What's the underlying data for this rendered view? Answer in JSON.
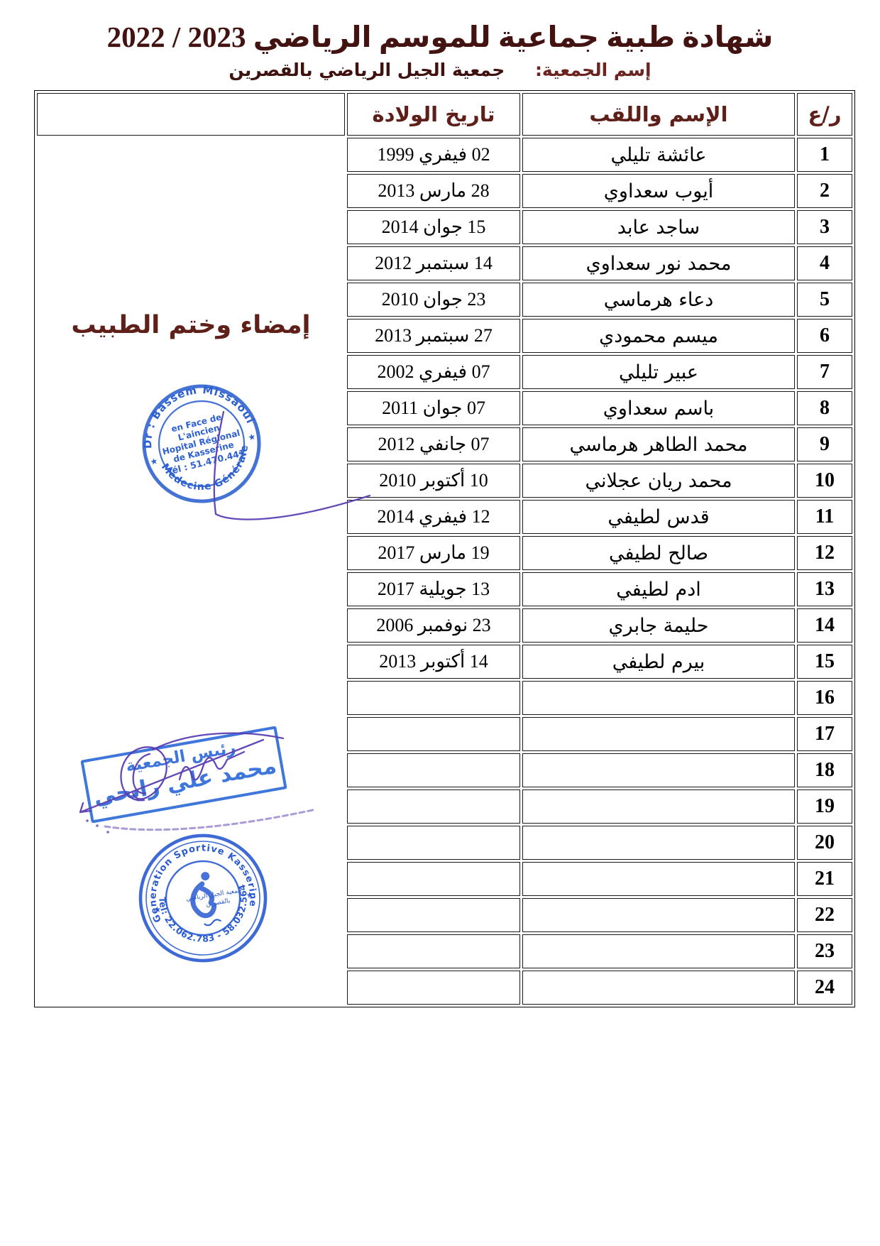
{
  "page": {
    "title": "شهادة طبية جماعية للموسم الرياضي 2023 / 2022",
    "subtitle_label": "إسم الجمعية:",
    "subtitle_value": "جمعية الجيل الرياضي بالقصرين"
  },
  "table": {
    "headers": {
      "index": "ر/ع",
      "name": "الإسم واللقب",
      "dob": "تاريخ الولادة"
    },
    "signature_header": "إمضاء وختم الطبيب",
    "rows": [
      {
        "n": "1",
        "name": "عائشة تليلي",
        "dob": "02 فيفري 1999"
      },
      {
        "n": "2",
        "name": "أيوب سعداوي",
        "dob": "28 مارس 2013"
      },
      {
        "n": "3",
        "name": "ساجد عابد",
        "dob": "15 جوان 2014"
      },
      {
        "n": "4",
        "name": "محمد نور سعداوي",
        "dob": "14 سبتمبر 2012"
      },
      {
        "n": "5",
        "name": "دعاء هرماسي",
        "dob": "23 جوان 2010"
      },
      {
        "n": "6",
        "name": "ميسم محمودي",
        "dob": "27 سبتمبر 2013"
      },
      {
        "n": "7",
        "name": "عبير تليلي",
        "dob": "07 فيفري 2002"
      },
      {
        "n": "8",
        "name": "باسم سعداوي",
        "dob": "07 جوان 2011"
      },
      {
        "n": "9",
        "name": "محمد الطاهر هرماسي",
        "dob": "07 جانفي 2012"
      },
      {
        "n": "10",
        "name": "محمد ريان عجلاني",
        "dob": "10 أكتوبر 2010"
      },
      {
        "n": "11",
        "name": "قدس لطيفي",
        "dob": "12 فيفري 2014"
      },
      {
        "n": "12",
        "name": "صالح لطيفي",
        "dob": "19 مارس 2017"
      },
      {
        "n": "13",
        "name": "ادم لطيفي",
        "dob": "13 جويلية 2017"
      },
      {
        "n": "14",
        "name": "حليمة جابري",
        "dob": "23 نوفمبر 2006"
      },
      {
        "n": "15",
        "name": "بيرم لطيفي",
        "dob": "14 أكتوبر 2013"
      },
      {
        "n": "16",
        "name": "",
        "dob": ""
      },
      {
        "n": "17",
        "name": "",
        "dob": ""
      },
      {
        "n": "18",
        "name": "",
        "dob": ""
      },
      {
        "n": "19",
        "name": "",
        "dob": ""
      },
      {
        "n": "20",
        "name": "",
        "dob": ""
      },
      {
        "n": "21",
        "name": "",
        "dob": ""
      },
      {
        "n": "22",
        "name": "",
        "dob": ""
      },
      {
        "n": "23",
        "name": "",
        "dob": ""
      },
      {
        "n": "24",
        "name": "",
        "dob": ""
      }
    ]
  },
  "stamps": {
    "doctor": {
      "top_arc": "Dr : Bassem Missaoui",
      "bottom_arc": "Médecine Générale",
      "line1": "en Face de",
      "line2": "L'aincien",
      "line3": "Hopital Régional",
      "line4": "de Kasserine",
      "line5": "Tél : 51.470.441",
      "star_left": "★",
      "star_right": "★"
    },
    "president": {
      "line1": "رئيس الجمعية",
      "line2": "محمد علي رابحي"
    },
    "club": {
      "top_arc": "Generation Sportive Kasserine",
      "bottom_arc": "Tél: 22.062.783 - 58.032.564",
      "center_line1": "جمعية الجيل الرياضي",
      "center_line2": "بالقصرين",
      "star_left": "★",
      "star_right": "★"
    }
  },
  "colors": {
    "title_ink": "#421310",
    "header_maroon": "#5f1f19",
    "stamp_blue": "#2c5fd0",
    "rect_stamp_blue": "#2f6bd8",
    "signature_purple": "#5b3fb4",
    "table_ink": "#000000"
  }
}
